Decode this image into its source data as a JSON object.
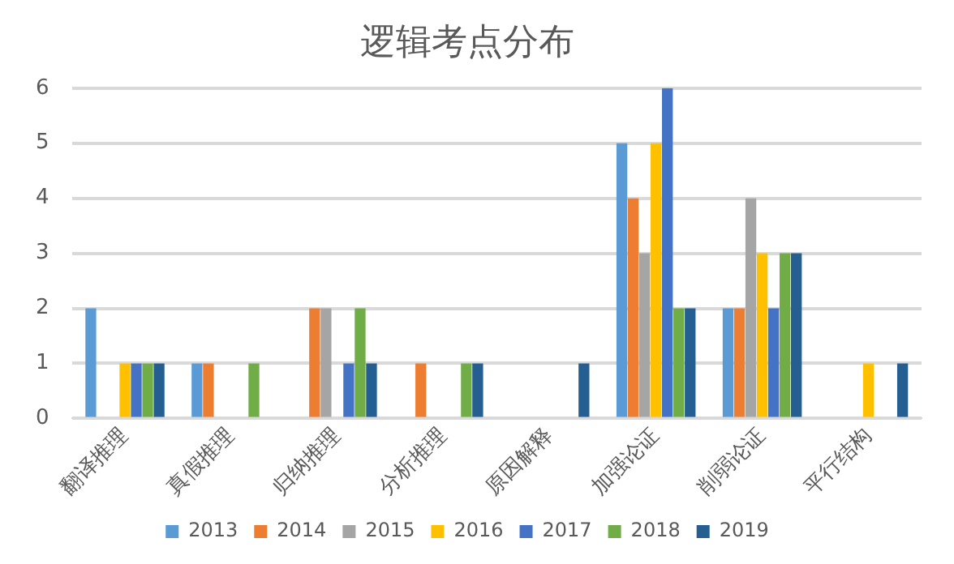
{
  "chart_data": {
    "type": "bar",
    "title": "逻辑考点分布",
    "categories": [
      "翻译推理",
      "真假推理",
      "归纳推理",
      "分析推理",
      "原因解释",
      "加强论证",
      "削弱论证",
      "平行结构"
    ],
    "series": [
      {
        "name": "2013",
        "color": "#5b9bd5",
        "values": [
          2,
          1,
          0,
          0,
          0,
          5,
          2,
          0
        ]
      },
      {
        "name": "2014",
        "color": "#ed7d31",
        "values": [
          0,
          1,
          2,
          1,
          0,
          4,
          2,
          0
        ]
      },
      {
        "name": "2015",
        "color": "#a5a5a5",
        "values": [
          0,
          0,
          2,
          0,
          0,
          3,
          4,
          0
        ]
      },
      {
        "name": "2016",
        "color": "#ffc000",
        "values": [
          1,
          0,
          0,
          0,
          0,
          5,
          3,
          1
        ]
      },
      {
        "name": "2017",
        "color": "#4472c4",
        "values": [
          1,
          0,
          1,
          0,
          0,
          6,
          2,
          0
        ]
      },
      {
        "name": "2018",
        "color": "#70ad47",
        "values": [
          1,
          1,
          2,
          1,
          0,
          2,
          3,
          0
        ]
      },
      {
        "name": "2019",
        "color": "#255e91",
        "values": [
          1,
          0,
          1,
          1,
          1,
          2,
          3,
          1
        ]
      }
    ],
    "ylim": [
      0,
      6
    ],
    "yticks": [
      0,
      1,
      2,
      3,
      4,
      5,
      6
    ],
    "grid": "y",
    "legend": "bottom"
  }
}
